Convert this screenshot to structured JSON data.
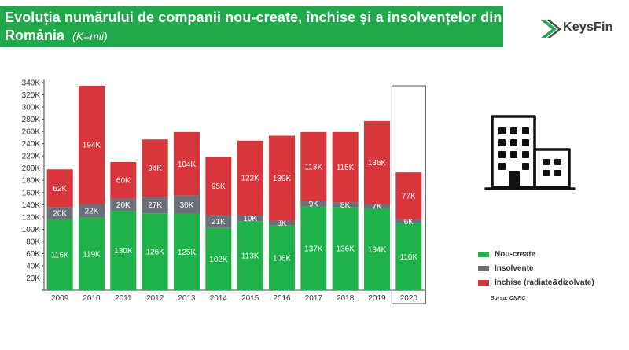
{
  "title": {
    "line1": "Evoluția numărului de companii nou-create, închise și a insolvențelor din",
    "line2": "România",
    "unit": "(K=mii)"
  },
  "logo": {
    "name": "KeysFin",
    "icon": "chevron-arrow-icon"
  },
  "building_icon": "office-building-icon",
  "legend": {
    "items": [
      {
        "label": "Nou-create",
        "color": "#20b24a"
      },
      {
        "label": "Insolvențe",
        "color": "#6b6f78"
      },
      {
        "label": "Închise (radiate&dizolvate)",
        "color": "#d6363c"
      }
    ]
  },
  "source": "Sursa: ONRC",
  "chart_data": {
    "type": "bar",
    "stacked": true,
    "categories": [
      "2009",
      "2010",
      "2011",
      "2012",
      "2013",
      "2014",
      "2015",
      "2016",
      "2017",
      "2018",
      "2019",
      "2020"
    ],
    "series": [
      {
        "name": "Nou-create",
        "color": "#20b24a",
        "values": [
          116,
          119,
          130,
          126,
          125,
          102,
          113,
          106,
          137,
          136,
          134,
          110
        ]
      },
      {
        "name": "Insolvențe",
        "color": "#6b6f78",
        "values": [
          20,
          22,
          20,
          27,
          30,
          21,
          10,
          8,
          9,
          8,
          7,
          6
        ]
      },
      {
        "name": "Închise (radiate&dizolvate)",
        "color": "#d6363c",
        "values": [
          62,
          194,
          60,
          94,
          104,
          95,
          122,
          139,
          113,
          115,
          136,
          77
        ]
      }
    ],
    "data_label_suffix": "K",
    "ylim": [
      0,
      340
    ],
    "ytick_step": 20,
    "ytick_labels": [
      "",
      "20K",
      "40K",
      "60K",
      "80K",
      "100K",
      "120K",
      "140K",
      "160K",
      "180K",
      "200K",
      "220K",
      "240K",
      "260K",
      "280K",
      "300K",
      "320K",
      "340K"
    ],
    "highlighted_category": "2020",
    "grid": false,
    "legend_position": "right"
  }
}
